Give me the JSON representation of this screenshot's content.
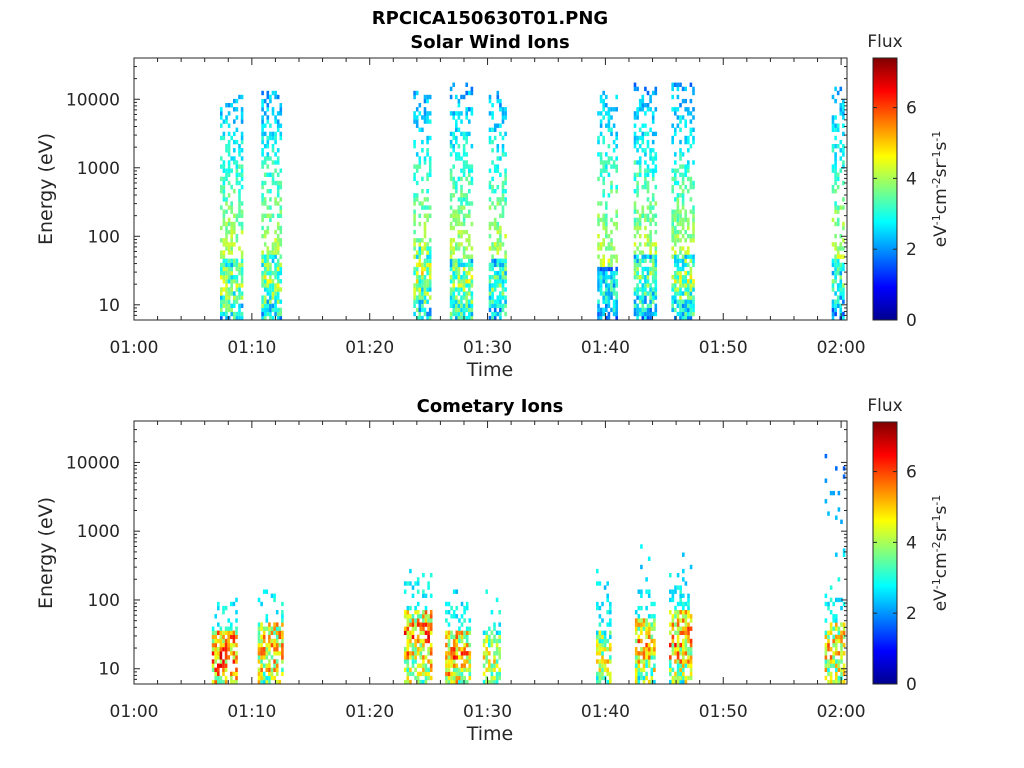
{
  "figure": {
    "title": "RPCICA150630T01.PNG"
  },
  "chart_data": [
    {
      "type": "heatmap",
      "title": "Solar Wind Ions",
      "xlabel": "Time",
      "ylabel": "Energy (eV)",
      "x_ticks": [
        "01:00",
        "01:10",
        "01:20",
        "01:30",
        "01:40",
        "01:50",
        "02:00"
      ],
      "x_range_minutes": [
        0,
        60.5
      ],
      "y_scale": "log",
      "y_range": [
        6,
        40000
      ],
      "y_ticks": [
        "10",
        "100",
        "1000",
        "10000"
      ],
      "colorbar": {
        "title": "Flux",
        "label": "eV-1cm-2sr-1s-1",
        "range": [
          0,
          7.4
        ],
        "ticks": [
          "0",
          "2",
          "4",
          "6"
        ],
        "colormap": "jet"
      },
      "bursts": [
        {
          "start": 7.3,
          "end": 9.2,
          "top_energy": 10000,
          "peak_energy": 20,
          "peak_flux": 4.8
        },
        {
          "start": 10.8,
          "end": 12.6,
          "top_energy": 12000,
          "peak_energy": 25,
          "peak_flux": 5.0
        },
        {
          "start": 23.7,
          "end": 25.3,
          "top_energy": 12000,
          "peak_energy": 30,
          "peak_flux": 5.2
        },
        {
          "start": 26.8,
          "end": 28.7,
          "top_energy": 15000,
          "peak_energy": 20,
          "peak_flux": 5.0
        },
        {
          "start": 30.1,
          "end": 31.7,
          "top_energy": 12000,
          "peak_energy": 20,
          "peak_flux": 4.5
        },
        {
          "start": 39.3,
          "end": 41.0,
          "top_energy": 12000,
          "peak_energy": 15,
          "peak_flux": 3.8
        },
        {
          "start": 42.4,
          "end": 44.4,
          "top_energy": 15000,
          "peak_energy": 25,
          "peak_flux": 4.5
        },
        {
          "start": 45.6,
          "end": 47.6,
          "top_energy": 15000,
          "peak_energy": 25,
          "peak_flux": 5.0
        },
        {
          "start": 59.2,
          "end": 60.4,
          "top_energy": 15000,
          "peak_energy": 20,
          "peak_flux": 4.2
        }
      ]
    },
    {
      "type": "heatmap",
      "title": "Cometary Ions",
      "xlabel": "Time",
      "ylabel": "Energy (eV)",
      "x_ticks": [
        "01:00",
        "01:10",
        "01:20",
        "01:30",
        "01:40",
        "01:50",
        "02:00"
      ],
      "x_range_minutes": [
        0,
        60.5
      ],
      "y_scale": "log",
      "y_range": [
        6,
        40000
      ],
      "y_ticks": [
        "10",
        "100",
        "1000",
        "10000"
      ],
      "colorbar": {
        "title": "Flux",
        "label": "eV-1cm-2sr-1s-1",
        "range": [
          0,
          7.4
        ],
        "ticks": [
          "0",
          "2",
          "4",
          "6"
        ],
        "colormap": "jet"
      },
      "bursts": [
        {
          "start": 6.6,
          "end": 8.8,
          "top_energy": 120,
          "peak_energy": 15,
          "peak_flux": 7.0
        },
        {
          "start": 10.5,
          "end": 12.6,
          "top_energy": 150,
          "peak_energy": 20,
          "peak_flux": 6.5
        },
        {
          "start": 22.9,
          "end": 25.3,
          "top_energy": 250,
          "peak_energy": 30,
          "peak_flux": 6.8
        },
        {
          "start": 26.4,
          "end": 28.5,
          "top_energy": 120,
          "peak_energy": 15,
          "peak_flux": 6.6
        },
        {
          "start": 29.6,
          "end": 31.2,
          "top_energy": 150,
          "peak_energy": 15,
          "peak_flux": 5.5
        },
        {
          "start": 39.2,
          "end": 40.6,
          "top_energy": 250,
          "peak_energy": 15,
          "peak_flux": 5.5
        },
        {
          "start": 42.5,
          "end": 44.2,
          "top_energy": 600,
          "peak_energy": 25,
          "peak_flux": 6.3
        },
        {
          "start": 45.4,
          "end": 47.4,
          "top_energy": 500,
          "peak_energy": 30,
          "peak_flux": 6.8
        },
        {
          "start": 58.6,
          "end": 60.4,
          "top_energy": 13000,
          "peak_energy": 20,
          "peak_flux": 6.2
        }
      ]
    }
  ]
}
